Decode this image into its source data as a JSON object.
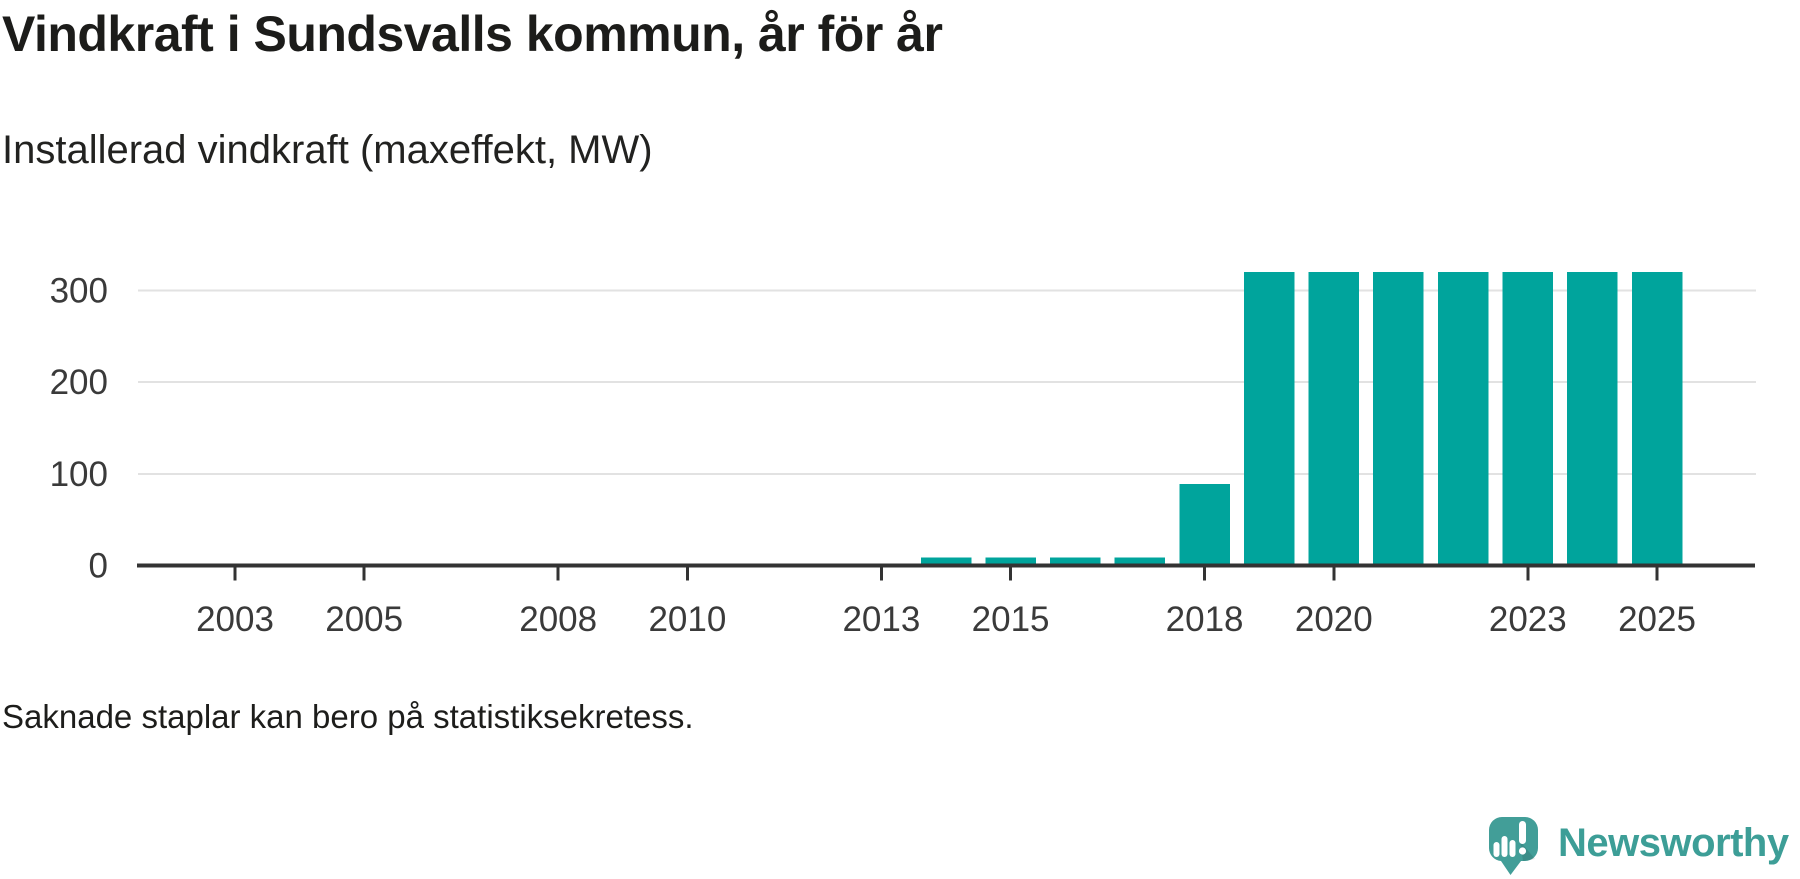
{
  "header": {
    "title": "Vindkraft i Sundsvalls kommun, år för år",
    "subtitle": "Installerad vindkraft (maxeffekt, MW)"
  },
  "footnote": "Saknade staplar kan bero på statistiksekretess.",
  "logo": {
    "text": "Newsworthy",
    "icon": "newsworthy-speech-bubble-bar-chart-icon",
    "icon_color": "#429e98",
    "text_color": "#3d9e97"
  },
  "colors": {
    "bar": "#00a49c",
    "grid": "#e2e2e2",
    "axis": "#333333",
    "tick_label": "#3a3a3a"
  },
  "chart_data": {
    "type": "bar",
    "title": "Vindkraft i Sundsvalls kommun, år för år",
    "subtitle": "Installerad vindkraft (maxeffekt, MW)",
    "xlabel": "",
    "ylabel": "Installerad vindkraft (maxeffekt, MW)",
    "categories": [
      2002,
      2003,
      2004,
      2005,
      2006,
      2007,
      2008,
      2009,
      2010,
      2011,
      2012,
      2013,
      2014,
      2015,
      2016,
      2017,
      2018,
      2019,
      2020,
      2021,
      2022,
      2023,
      2024,
      2025,
      2026
    ],
    "values": [
      null,
      null,
      null,
      null,
      null,
      null,
      null,
      null,
      null,
      null,
      null,
      null,
      9,
      9,
      9,
      9,
      89,
      320,
      320,
      320,
      320,
      320,
      320,
      320,
      null
    ],
    "x_tick_labels": [
      "2003",
      "2005",
      "2008",
      "2010",
      "2013",
      "2015",
      "2018",
      "2020",
      "2023",
      "2025"
    ],
    "y_ticks": [
      0,
      100,
      200,
      300
    ],
    "ylim": [
      0,
      355
    ],
    "grid": "horizontal-only",
    "legend": "none",
    "note": "Saknade staplar kan bero på statistiksekretess."
  }
}
